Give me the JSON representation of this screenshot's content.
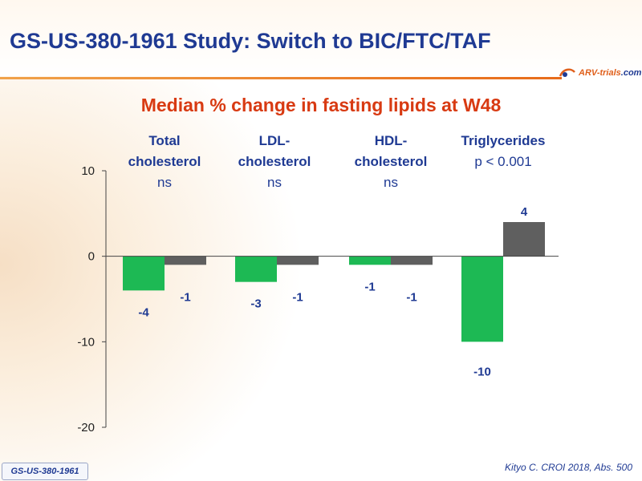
{
  "slide": {
    "title": "GS-US-380-1961 Study: Switch to BIC/FTC/TAF",
    "logo_text_main": "ARV-trials",
    "logo_text_tail": ".com",
    "footer_badge": "GS-US-380-1961",
    "citation": "Kityo C. CROI 2018, Abs. 500"
  },
  "chart_data": {
    "type": "bar",
    "title": "Median % change in fasting lipids at W48",
    "categories": [
      "Total\ncholesterol",
      "LDL-\ncholesterol",
      "HDL-\ncholesterol",
      "Triglycerides"
    ],
    "significance": [
      "ns",
      "ns",
      "ns",
      "p < 0.001"
    ],
    "series": [
      {
        "values": [
          -4,
          -3,
          -1,
          -10
        ],
        "color": "#1db954"
      },
      {
        "values": [
          -1,
          -1,
          -1,
          4
        ],
        "color": "#5f5f5f"
      }
    ],
    "data_labels": [
      [
        "-4",
        "-3",
        "-1",
        "-10"
      ],
      [
        "-1",
        "-1",
        "-1",
        "4"
      ]
    ],
    "ylim": [
      -20,
      10
    ],
    "yticks": [
      10,
      0,
      -10,
      -20
    ],
    "grid": false,
    "legend": "none",
    "label_color": "#1f3a93"
  }
}
